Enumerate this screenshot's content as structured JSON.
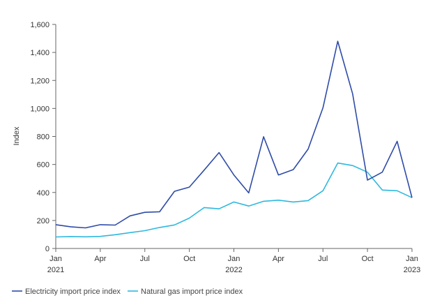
{
  "chart_data": {
    "type": "line",
    "title": "",
    "xlabel": "",
    "ylabel": "Index",
    "ylim": [
      0,
      1600
    ],
    "grid": false,
    "legend_position": "bottom-left",
    "yticks": [
      0,
      200,
      400,
      600,
      800,
      1000,
      1200,
      1400,
      1600
    ],
    "ytick_labels": [
      "0",
      "200",
      "400",
      "600",
      "800",
      "1,000",
      "1,200",
      "1,400",
      "1,600"
    ],
    "xticks": [
      {
        "index": 0,
        "line1": "Jan",
        "line2": "2021"
      },
      {
        "index": 3,
        "line1": "Apr",
        "line2": ""
      },
      {
        "index": 6,
        "line1": "Jul",
        "line2": ""
      },
      {
        "index": 9,
        "line1": "Oct",
        "line2": ""
      },
      {
        "index": 12,
        "line1": "Jan",
        "line2": "2022"
      },
      {
        "index": 15,
        "line1": "Apr",
        "line2": ""
      },
      {
        "index": 18,
        "line1": "Jul",
        "line2": ""
      },
      {
        "index": 21,
        "line1": "Oct",
        "line2": ""
      },
      {
        "index": 24,
        "line1": "Jan",
        "line2": "2023"
      }
    ],
    "x": [
      "2021-01",
      "2021-02",
      "2021-03",
      "2021-04",
      "2021-05",
      "2021-06",
      "2021-07",
      "2021-08",
      "2021-09",
      "2021-10",
      "2021-11",
      "2021-12",
      "2022-01",
      "2022-02",
      "2022-03",
      "2022-04",
      "2022-05",
      "2022-06",
      "2022-07",
      "2022-08",
      "2022-09",
      "2022-10",
      "2022-11",
      "2022-12",
      "2023-01"
    ],
    "series": [
      {
        "name": "Electricity import price index",
        "color": "#2E4BA8",
        "values": [
          170,
          155,
          147,
          170,
          167,
          233,
          258,
          262,
          408,
          438,
          560,
          685,
          525,
          397,
          798,
          525,
          563,
          710,
          1005,
          1480,
          1105,
          488,
          545,
          765,
          363
        ]
      },
      {
        "name": "Natural gas import price index",
        "color": "#2EB8DF",
        "values": [
          82,
          85,
          83,
          86,
          98,
          113,
          127,
          150,
          168,
          217,
          292,
          283,
          332,
          303,
          337,
          345,
          332,
          342,
          412,
          610,
          592,
          545,
          417,
          412,
          363
        ]
      }
    ]
  }
}
